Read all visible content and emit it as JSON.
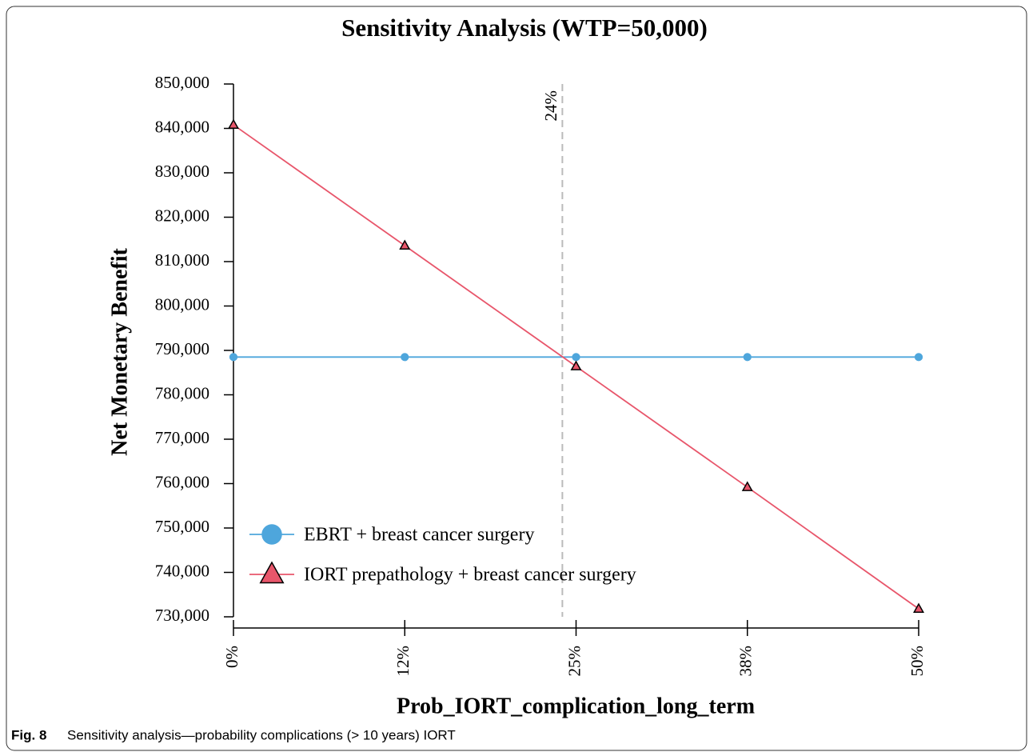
{
  "chart_data": {
    "type": "line",
    "title": "Sensitivity Analysis (WTP=50,000)",
    "x_label": "Prob_IORT_complication_long_term",
    "y_label": "Net Monetary Benefit",
    "x": [
      0,
      12.5,
      25,
      37.5,
      50
    ],
    "series": [
      {
        "name": "EBRT + breast cancer surgery",
        "color": "#4ea6dc",
        "marker": "circle",
        "values": [
          788500,
          788500,
          788500,
          788500,
          788500
        ]
      },
      {
        "name": "IORT prepathology + breast cancer surgery",
        "color": "#e8566b",
        "marker": "triangle",
        "values": [
          840800,
          813600,
          786400,
          759200,
          731800
        ]
      }
    ],
    "xlim": [
      0,
      50
    ],
    "xticks": [
      {
        "value": 0,
        "label": "0%"
      },
      {
        "value": 12.5,
        "label": "12%"
      },
      {
        "value": 25,
        "label": "25%"
      },
      {
        "value": 37.5,
        "label": "38%"
      },
      {
        "value": 50,
        "label": "50%"
      }
    ],
    "ylim": [
      730000,
      850000
    ],
    "yticks": [
      {
        "value": 730000,
        "label": "730,000"
      },
      {
        "value": 740000,
        "label": "740,000"
      },
      {
        "value": 750000,
        "label": "750,000"
      },
      {
        "value": 760000,
        "label": "760,000"
      },
      {
        "value": 770000,
        "label": "770,000"
      },
      {
        "value": 780000,
        "label": "780,000"
      },
      {
        "value": 790000,
        "label": "790,000"
      },
      {
        "value": 800000,
        "label": "800,000"
      },
      {
        "value": 810000,
        "label": "810,000"
      },
      {
        "value": 820000,
        "label": "820,000"
      },
      {
        "value": 830000,
        "label": "830,000"
      },
      {
        "value": 840000,
        "label": "840,000"
      },
      {
        "value": 850000,
        "label": "850,000"
      }
    ],
    "threshold": {
      "value": 24,
      "label": "24%"
    },
    "legend": "bottom-left"
  },
  "caption": {
    "label": "Fig. 8",
    "text": "Sensitivity analysis—probability complications (> 10 years) IORT"
  }
}
